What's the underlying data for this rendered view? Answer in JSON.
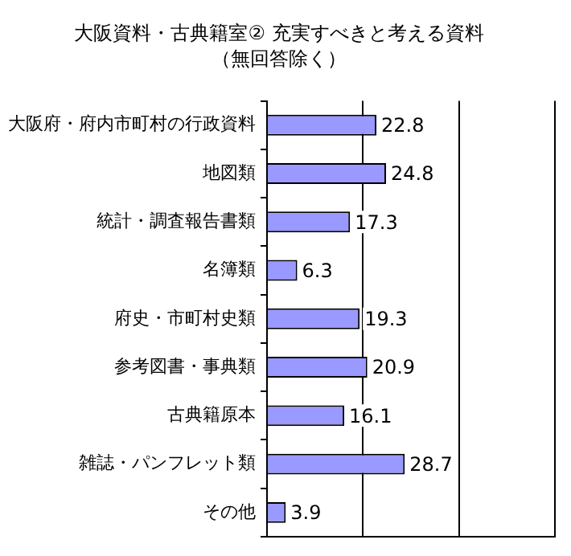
{
  "chart_data": {
    "type": "bar",
    "orientation": "horizontal",
    "title": "大阪資料・古典籍室② 充実すべきと考える資料",
    "subtitle": "（無回答除く）",
    "categories": [
      "大阪府・府内市町村の行政資料",
      "地図類",
      "統計・調査報告書類",
      "名簿類",
      "府史・市町村史類",
      "参考図書・事典類",
      "古典籍原本",
      "雑誌・パンフレット類",
      "その他"
    ],
    "values": [
      22.8,
      24.8,
      17.3,
      6.3,
      19.3,
      20.9,
      16.1,
      28.7,
      3.9
    ],
    "color": "#9999ff",
    "xlim": [
      0,
      60
    ],
    "xticks": [
      {
        "value": 0,
        "label": null
      },
      {
        "value": 20,
        "label": null
      },
      {
        "value": 40,
        "label": null
      },
      {
        "value": 60,
        "label": null
      }
    ],
    "tick_labels": "y",
    "grid": "x",
    "data_labels": true,
    "legend": false
  }
}
